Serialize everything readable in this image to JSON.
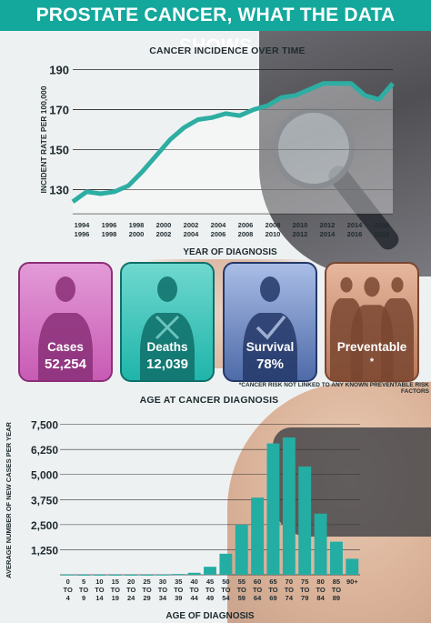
{
  "header": {
    "title": "PROSTATE CANCER, WHAT THE DATA SHOWS"
  },
  "colors": {
    "teal": "#14a89c",
    "line": "#2eaea2",
    "bar": "#23ada3",
    "pink": "#c85bb4",
    "teal_card": "#1fb5aa",
    "blue": "#4e6ba8",
    "brown": "#b8785a"
  },
  "cards": [
    {
      "label": "Cases",
      "value": "52,254",
      "icon": "person-icon"
    },
    {
      "label": "Deaths",
      "value": "12,039",
      "icon": "person-cross-icon"
    },
    {
      "label": "Survival",
      "value": "78%",
      "icon": "person-check-icon"
    },
    {
      "label": "Preventable",
      "value": "*",
      "icon": "group-icon"
    }
  ],
  "footnote": "*CANCER RISK NOT LINKED TO ANY KNOWN PREVENTABLE RISK FACTORS",
  "chart_data": [
    {
      "type": "line",
      "title": "CANCER INCIDENCE OVER TIME",
      "xlabel": "YEAR OF DIAGNOSIS",
      "ylabel": "INCIDENT RATE PER 100,000",
      "ylim": [
        118,
        192
      ],
      "yticks": [
        130,
        150,
        170,
        190
      ],
      "ticks": [
        {
          "top": "1994",
          "bottom": "1996"
        },
        {
          "top": "1996",
          "bottom": "1998"
        },
        {
          "top": "1998",
          "bottom": "2000"
        },
        {
          "top": "2000",
          "bottom": "2002"
        },
        {
          "top": "2002",
          "bottom": "2004"
        },
        {
          "top": "2004",
          "bottom": "2006"
        },
        {
          "top": "2006",
          "bottom": "2008"
        },
        {
          "top": "2008",
          "bottom": "2010"
        },
        {
          "top": "2010",
          "bottom": "2012"
        },
        {
          "top": "2012",
          "bottom": "2014"
        },
        {
          "top": "2014",
          "bottom": "2016"
        },
        {
          "top": "2016",
          "bottom": "2018"
        }
      ],
      "values": [
        124,
        129,
        128,
        129,
        132,
        139,
        147,
        155,
        161,
        165,
        166,
        168,
        167,
        170,
        172,
        176,
        177,
        180,
        183,
        183,
        183,
        177,
        175,
        183
      ],
      "grid": true
    },
    {
      "type": "bar",
      "title": "AGE AT CANCER DIAGNOSIS",
      "xlabel": "AGE OF DIAGNOSIS",
      "ylabel": "AVERAGE NUMBER OF NEW CASES PER YEAR",
      "ylim": [
        0,
        7800
      ],
      "yticks": [
        1250,
        2500,
        3750,
        5000,
        6250,
        7500
      ],
      "ytick_labels": [
        "1,250",
        "2,500",
        "3,750",
        "5,000",
        "6,250",
        "7,500"
      ],
      "categories": [
        [
          "0",
          "TO",
          "4"
        ],
        [
          "5",
          "TO",
          "9"
        ],
        [
          "10",
          "TO",
          "14"
        ],
        [
          "15",
          "TO",
          "19"
        ],
        [
          "20",
          "TO",
          "24"
        ],
        [
          "25",
          "TO",
          "29"
        ],
        [
          "30",
          "TO",
          "34"
        ],
        [
          "35",
          "TO",
          "39"
        ],
        [
          "40",
          "TO",
          "44"
        ],
        [
          "45",
          "TO",
          "49"
        ],
        [
          "50",
          "TO",
          "54"
        ],
        [
          "55",
          "TO",
          "59"
        ],
        [
          "60",
          "TO",
          "64"
        ],
        [
          "65",
          "TO",
          "69"
        ],
        [
          "70",
          "TO",
          "74"
        ],
        [
          "75",
          "TO",
          "79"
        ],
        [
          "80",
          "TO",
          "84"
        ],
        [
          "85",
          "TO",
          "89"
        ],
        [
          "90+"
        ]
      ],
      "values": [
        10,
        5,
        5,
        5,
        5,
        5,
        10,
        40,
        100,
        400,
        1050,
        2500,
        3850,
        6550,
        6850,
        5400,
        3050,
        1650,
        800
      ],
      "grid": true
    }
  ]
}
